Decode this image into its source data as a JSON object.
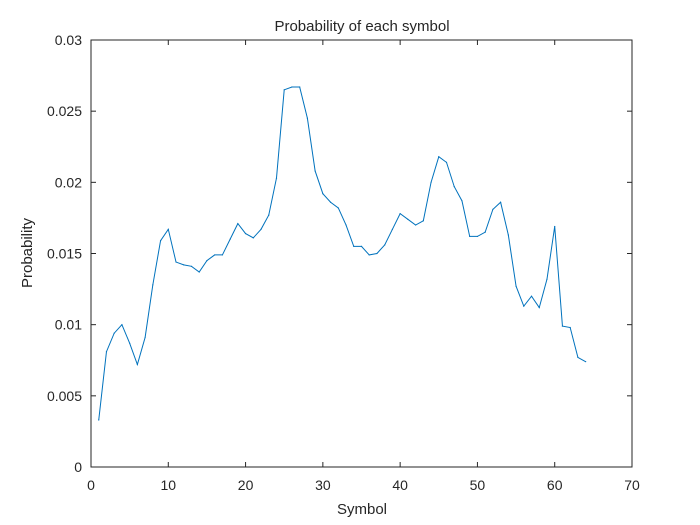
{
  "chart_data": {
    "type": "line",
    "title": "Probability of each symbol",
    "xlabel": "Symbol",
    "ylabel": "Probability",
    "xlim": [
      0,
      70
    ],
    "ylim": [
      0,
      0.03
    ],
    "xticks": [
      "0",
      "10",
      "20",
      "30",
      "40",
      "50",
      "60",
      "70"
    ],
    "yticks": [
      "0",
      "0.005",
      "0.01",
      "0.015",
      "0.02",
      "0.025",
      "0.03"
    ],
    "grid": false,
    "line_color": "#0072BD",
    "x": [
      1,
      2,
      3,
      4,
      5,
      6,
      7,
      8,
      9,
      10,
      11,
      12,
      13,
      14,
      15,
      16,
      17,
      18,
      19,
      20,
      21,
      22,
      23,
      24,
      25,
      26,
      27,
      28,
      29,
      30,
      31,
      32,
      33,
      34,
      35,
      36,
      37,
      38,
      39,
      40,
      41,
      42,
      43,
      44,
      45,
      46,
      47,
      48,
      49,
      50,
      51,
      52,
      53,
      54,
      55,
      56,
      57,
      58,
      59,
      60,
      61,
      62,
      63,
      64
    ],
    "y": [
      0.0033,
      0.0081,
      0.0094,
      0.01,
      0.0087,
      0.0072,
      0.0091,
      0.0128,
      0.0159,
      0.0167,
      0.0144,
      0.0142,
      0.0141,
      0.0137,
      0.0145,
      0.0149,
      0.0149,
      0.016,
      0.0171,
      0.0164,
      0.0161,
      0.0167,
      0.0177,
      0.0203,
      0.0265,
      0.0267,
      0.0267,
      0.0245,
      0.0208,
      0.0192,
      0.0186,
      0.0182,
      0.017,
      0.0155,
      0.0155,
      0.0149,
      0.015,
      0.0156,
      0.0167,
      0.0178,
      0.0174,
      0.017,
      0.0173,
      0.02,
      0.0218,
      0.0214,
      0.0197,
      0.0187,
      0.0162,
      0.0162,
      0.0165,
      0.0181,
      0.0186,
      0.0163,
      0.0127,
      0.0113,
      0.012,
      0.0112,
      0.0132,
      0.0169,
      0.0099,
      0.0098,
      0.0077,
      0.0074
    ]
  }
}
